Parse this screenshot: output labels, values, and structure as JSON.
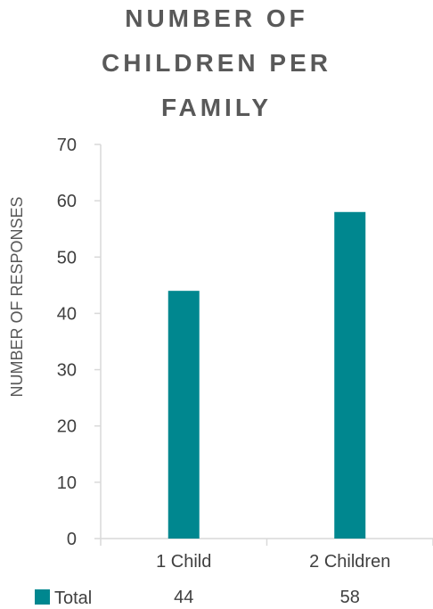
{
  "chart_data": {
    "type": "bar",
    "title_lines": [
      "NUMBER OF",
      "CHILDREN PER",
      "FAMILY"
    ],
    "xlabel": "",
    "ylabel": "NUMBER OF RESPONSES",
    "categories": [
      "1 Child",
      "2 Children"
    ],
    "series": [
      {
        "name": "Total",
        "values": [
          44,
          58
        ],
        "color": "#00878F"
      }
    ],
    "ylim": [
      0,
      70
    ],
    "yticks": [
      0,
      10,
      20,
      30,
      40,
      50,
      60,
      70
    ],
    "grid": false,
    "legend": "data-table-below"
  }
}
